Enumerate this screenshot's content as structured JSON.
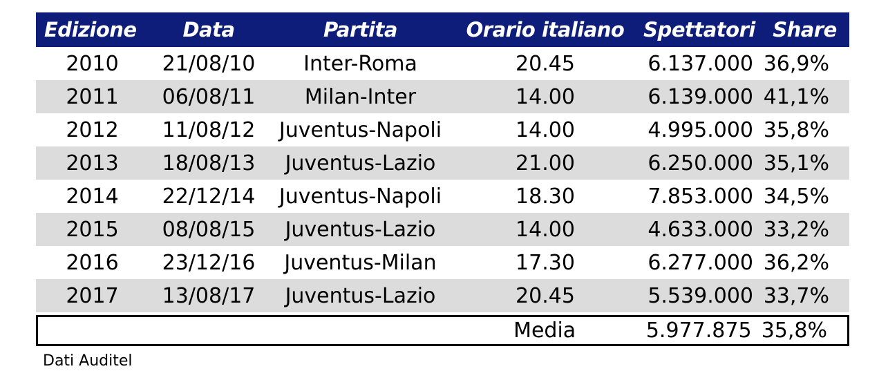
{
  "table": {
    "headers": [
      "Edizione",
      "Data",
      "Partita",
      "Orario italiano",
      "Spettatori",
      "Share"
    ],
    "rows": [
      [
        "2010",
        "21/08/10",
        "Inter-Roma",
        "20.45",
        "6.137.000",
        "36,9%"
      ],
      [
        "2011",
        "06/08/11",
        "Milan-Inter",
        "14.00",
        "6.139.000",
        "41,1%"
      ],
      [
        "2012",
        "11/08/12",
        "Juventus-Napoli",
        "14.00",
        "4.995.000",
        "35,8%"
      ],
      [
        "2013",
        "18/08/13",
        "Juventus-Lazio",
        "21.00",
        "6.250.000",
        "35,1%"
      ],
      [
        "2014",
        "22/12/14",
        "Juventus-Napoli",
        "18.30",
        "7.853.000",
        "34,5%"
      ],
      [
        "2015",
        "08/08/15",
        "Juventus-Lazio",
        "14.00",
        "4.633.000",
        "33,2%"
      ],
      [
        "2016",
        "23/12/16",
        "Juventus-Milan",
        "17.30",
        "6.277.000",
        "36,2%"
      ],
      [
        "2017",
        "13/08/17",
        "Juventus-Lazio",
        "20.45",
        "5.539.000",
        "33,7%"
      ]
    ],
    "total": {
      "label": "Media",
      "spettatori": "5.977.875",
      "share": "35,8%"
    }
  },
  "footnote": "Dati Auditel",
  "colors": {
    "header_bg": "#0f1d7a",
    "header_text": "#ffffff",
    "alt_row_bg": "#dcdcdc"
  }
}
